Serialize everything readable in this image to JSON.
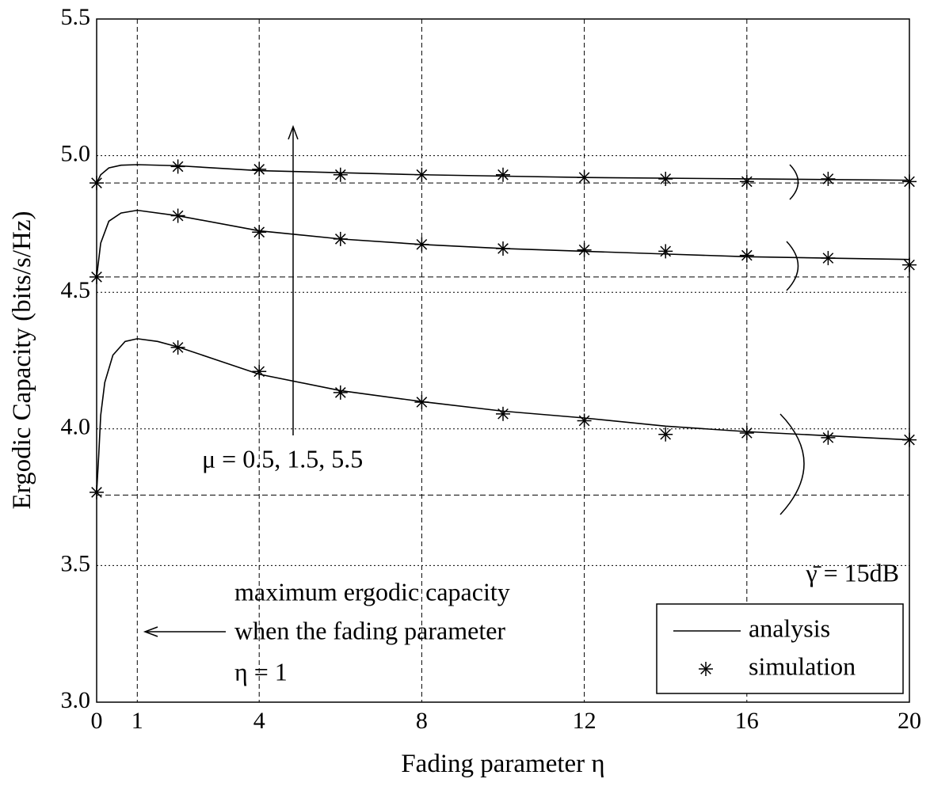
{
  "chart_data": {
    "type": "line",
    "xlabel": "Fading parameter  η",
    "ylabel": "Ergodic Capacity (bits/s/Hz)",
    "xlim": [
      0,
      20
    ],
    "ylim": [
      3,
      5.5
    ],
    "xticks": [
      0,
      1,
      4,
      8,
      12,
      16,
      20
    ],
    "yticks": [
      {
        "value": 3,
        "label": "3.0"
      },
      3.5,
      {
        "value": 4,
        "label": "4.0"
      },
      4.5,
      {
        "value": 5,
        "label": "5.0"
      },
      5.5
    ],
    "grid": true,
    "legend": "lower right",
    "reference_lines": [
      4.9,
      4.556,
      3.758
    ],
    "series": [
      {
        "name": "analysis",
        "color": "#000000",
        "curves": [
          {
            "x": [
              0,
              0.05,
              0.1,
              0.2,
              0.4,
              0.7,
              1,
              1.5,
              2,
              3,
              4,
              6,
              8,
              10,
              12,
              14,
              16,
              18,
              20
            ],
            "values": [
              3.768,
              3.9,
              4.05,
              4.17,
              4.27,
              4.32,
              4.33,
              4.32,
              4.3,
              4.25,
              4.2,
              4.14,
              4.1,
              4.065,
              4.04,
              4.01,
              3.99,
              3.975,
              3.96
            ]
          },
          {
            "x": [
              0,
              0.1,
              0.3,
              0.6,
              1,
              2,
              4,
              6,
              8,
              10,
              12,
              14,
              16,
              18,
              20
            ],
            "values": [
              4.556,
              4.68,
              4.76,
              4.79,
              4.8,
              4.78,
              4.725,
              4.695,
              4.675,
              4.66,
              4.65,
              4.64,
              4.63,
              4.625,
              4.62
            ]
          },
          {
            "x": [
              0,
              0.1,
              0.3,
              0.6,
              1,
              2,
              4,
              8,
              12,
              16,
              20
            ],
            "values": [
              4.9,
              4.93,
              4.955,
              4.965,
              4.967,
              4.963,
              4.945,
              4.93,
              4.92,
              4.915,
              4.91
            ]
          }
        ]
      },
      {
        "name": "simulation",
        "color": "#000000",
        "marker": "asterisk",
        "x": [
          0,
          2,
          4,
          6,
          8,
          10,
          12,
          14,
          16,
          18,
          20
        ],
        "curves": [
          {
            "values": [
              3.768,
              4.298,
              4.21,
              4.133,
              4.098,
              4.055,
              4.03,
              3.98,
              3.985,
              3.968,
              3.96
            ]
          },
          {
            "values": [
              4.556,
              4.78,
              4.72,
              4.695,
              4.675,
              4.66,
              4.655,
              4.65,
              4.635,
              4.625,
              4.6
            ]
          },
          {
            "values": [
              4.9,
              4.96,
              4.95,
              4.93,
              4.93,
              4.93,
              4.92,
              4.915,
              4.905,
              4.915,
              4.905
            ]
          }
        ]
      }
    ],
    "annotations": [
      "μ = 0.5, 1.5, 5.5",
      "maximum ergodic capacity",
      "when the fading parameter",
      "η = 1",
      "γ̄ = 15dB"
    ]
  }
}
